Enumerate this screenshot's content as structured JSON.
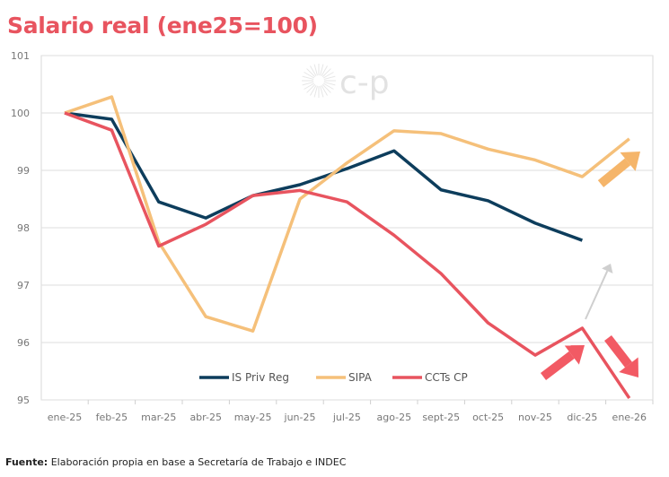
{
  "title": "Salario real (ene25=100)",
  "footer": {
    "label": "Fuente:",
    "text": "Elaboración propia en base a Secretaría de Trabajo e INDEC"
  },
  "watermark": "c-p",
  "chart_data": {
    "type": "line",
    "title": "Salario real (ene25=100)",
    "categories": [
      "ene-25",
      "feb-25",
      "mar-25",
      "abr-25",
      "may-25",
      "jun-25",
      "jul-25",
      "ago-25",
      "sept-25",
      "oct-25",
      "nov-25",
      "dic-25",
      "ene-26"
    ],
    "ylim": [
      95,
      101
    ],
    "yticks": [
      95,
      96,
      97,
      98,
      99,
      100,
      101
    ],
    "grid": true,
    "legend": "bottom-center",
    "series": [
      {
        "name": "IS Priv Reg",
        "color": "#0d3d5c",
        "values": [
          100,
          99.89,
          98.45,
          98.17,
          98.56,
          98.75,
          99.03,
          99.34,
          98.66,
          98.47,
          98.08,
          97.78,
          null
        ]
      },
      {
        "name": "SIPA",
        "color": "#f5c07a",
        "values": [
          100,
          100.28,
          97.75,
          96.45,
          96.2,
          98.5,
          99.13,
          99.69,
          99.64,
          99.37,
          99.18,
          98.89,
          99.55
        ]
      },
      {
        "name": "CCTs CP",
        "color": "#e8545f",
        "values": [
          100,
          99.7,
          97.68,
          98.06,
          98.56,
          98.65,
          98.45,
          97.87,
          97.2,
          96.34,
          95.78,
          96.25,
          95.03
        ]
      }
    ],
    "annotations": [
      {
        "type": "arrow-up",
        "color": "#f5b56a",
        "near": "SIPA ene-26"
      },
      {
        "type": "arrow-up",
        "color": "#f25a64",
        "near": "CCTs CP dic-25"
      },
      {
        "type": "arrow-down",
        "color": "#f25a64",
        "near": "CCTs CP ene-26"
      },
      {
        "type": "arrow-up-thin",
        "color": "#cfcfcf",
        "near": "IS Priv Reg projection"
      }
    ]
  }
}
